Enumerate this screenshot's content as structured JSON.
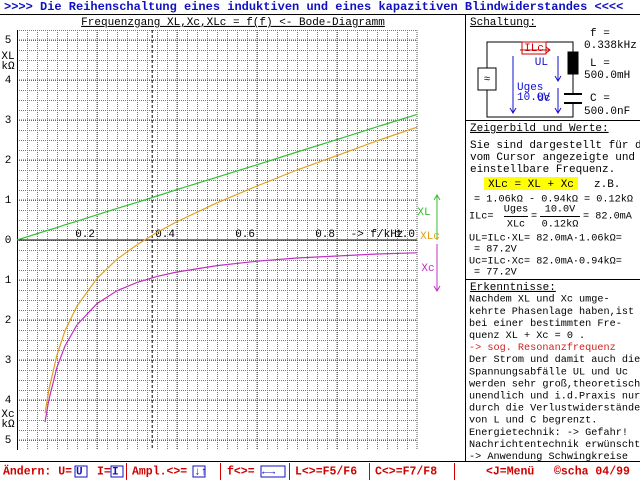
{
  "header": {
    "title": ">>>>  Die Reihenschaltung eines induktiven und eines kapazitiven Blindwiderstandes  <<<<"
  },
  "chart_data": {
    "type": "line",
    "title": "Frequenzgang  XL,Xc,XLc = f(f)  <- Bode-Diagramm",
    "xlabel": "-> f/kHz",
    "ylabel_top": [
      "XL",
      "kΩ"
    ],
    "ylabel_bottom": [
      "Xc",
      "kΩ"
    ],
    "x": [
      0,
      0.07,
      0.08,
      0.1,
      0.12,
      0.15,
      0.2,
      0.25,
      0.3,
      0.35,
      0.4,
      0.5,
      0.6,
      0.7,
      0.8,
      0.9,
      1.0
    ],
    "series": [
      {
        "name": "XL",
        "color": "#30c030",
        "values": [
          0,
          0.22,
          0.25,
          0.31,
          0.38,
          0.47,
          0.63,
          0.79,
          0.94,
          1.1,
          1.26,
          1.57,
          1.88,
          2.2,
          2.51,
          2.83,
          3.14
        ]
      },
      {
        "name": "XLc",
        "color": "#e0a020",
        "values": [
          null,
          -4.33,
          -3.73,
          -2.87,
          -2.27,
          -1.65,
          -0.96,
          -0.48,
          -0.12,
          0.19,
          0.46,
          0.93,
          1.35,
          1.75,
          2.11,
          2.48,
          2.82
        ]
      },
      {
        "name": "Xc",
        "color": "#c030c0",
        "values": [
          null,
          -4.55,
          -3.98,
          -3.18,
          -2.65,
          -2.12,
          -1.59,
          -1.27,
          -1.06,
          -0.91,
          -0.8,
          -0.64,
          -0.53,
          -0.45,
          -0.4,
          -0.35,
          -0.32
        ]
      }
    ],
    "cursor": 0.338,
    "xlim": [
      0,
      1.0
    ],
    "xticks": [
      0.2,
      0.4,
      0.6,
      0.8,
      {
        "value": 1,
        "label": "1.0"
      }
    ],
    "ylim": [
      -5.25,
      5.25
    ],
    "yticks": [
      5,
      4,
      3,
      2,
      1,
      0,
      {
        "value": -1,
        "label": "1"
      },
      {
        "value": -2,
        "label": "2"
      },
      {
        "value": -3,
        "label": "3"
      },
      {
        "value": -4,
        "label": "4"
      },
      {
        "value": -5,
        "label": "5"
      }
    ],
    "grid": true
  },
  "circuit": {
    "heading": "Schaltung:",
    "current": "ILc",
    "ul": "UL",
    "uges": "Uges",
    "uges_value": "10.0V",
    "uc": "Uc",
    "source": "≈",
    "f_label": "f =",
    "f_value": "0.338kHz",
    "l_label": "L =",
    "l_value": "500.0mH",
    "c_label": "C =",
    "c_value": "500.0nF"
  },
  "phasor": {
    "heading": "Zeigerbild und Werte:",
    "intro": [
      "Sie sind dargestellt für die",
      "vom Cursor angezeigte und",
      "einstellbare Frequenz."
    ],
    "formula": "XLc = XL + Xc",
    "example": "z.B.",
    "example_values": "= 1.06kΩ - 0.94kΩ = 0.12kΩ",
    "current": {
      "lhs": "ILc=",
      "num1": "Uges",
      "den1": "XLc",
      "eq": "=",
      "num2": "10.0V",
      "den2": "0.12kΩ",
      "result": "=  82.0mA"
    },
    "lines": [
      "UL=ILc·XL= 82.0mA·1.06kΩ=",
      "=  87.2V",
      "Uc=ILc·Xc= 82.0mA·0.94kΩ=",
      "=  77.2V"
    ]
  },
  "findings": {
    "heading": "Erkenntnisse:",
    "lines": [
      "Nachdem XL und Xc umge-",
      "kehrte Phasenlage haben,ist",
      "bei einer bestimmten Fre-",
      "quenz XL + Xc = 0 .",
      "-> sog. Resonanzfrequenz",
      "Der Strom und damit auch die",
      "Spannungsabfälle UL und Uc",
      "werden sehr groß,theoretisch",
      "unendlich und i.d.Praxis nur",
      "durch die Verlustwiderstände",
      "von L und C begrenzt.",
      "Energietechnik: -> Gefahr!",
      "Nachrichtentechnik erwünscht",
      "-> Anwendung Schwingkreise"
    ]
  },
  "footer": {
    "items": [
      "Ändern: U=",
      "U",
      "I=",
      "I",
      "Ampl.<>=",
      "↓↑",
      "f<>=",
      "←→",
      "L<>=F5/F6",
      "C<>=F7/F8",
      "<J=Menü",
      "©scha 04/99"
    ]
  }
}
